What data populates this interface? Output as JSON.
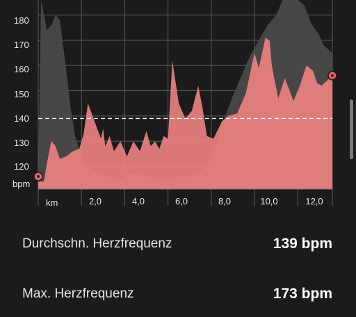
{
  "chart_data": {
    "type": "area",
    "xlabel": "km",
    "ylabel": "bpm",
    "xlim": [
      0,
      13.6
    ],
    "ylim": [
      111,
      186
    ],
    "x_ticks": [
      0,
      2,
      4,
      6,
      8,
      10,
      12,
      13.6
    ],
    "x_tick_labels": [
      "",
      "2,0",
      "4,0",
      "6,0",
      "8,0",
      "10,0",
      "12,0",
      ""
    ],
    "y_ticks": [
      120,
      130,
      140,
      150,
      160,
      170,
      180
    ],
    "y_tick_labels": [
      "120",
      "130",
      "140",
      "150",
      "160",
      "170",
      "180"
    ],
    "average_line": 139,
    "grid": true,
    "colors": {
      "heart_rate": "#f08282",
      "elevation": "#4a4a4a",
      "marker": "#f06464",
      "average": "#ffffff"
    },
    "series": [
      {
        "name": "",
        "kind": "heart_rate",
        "x": [
          0,
          0.26,
          0.4,
          0.6,
          0.8,
          1.0,
          1.3,
          1.6,
          1.9,
          2.1,
          2.3,
          2.6,
          2.9,
          3.0,
          3.1,
          3.3,
          3.5,
          3.8,
          4.1,
          4.4,
          4.7,
          5.0,
          5.2,
          5.4,
          5.6,
          5.8,
          6.0,
          6.2,
          6.5,
          6.8,
          7.1,
          7.4,
          7.6,
          7.8,
          8.1,
          8.5,
          8.8,
          9.2,
          9.6,
          10.0,
          10.2,
          10.5,
          10.7,
          10.8,
          11.1,
          11.4,
          11.8,
          12.1,
          12.4,
          12.7,
          12.9,
          13.1,
          13.6
        ],
        "values": [
          114,
          114,
          121,
          130,
          128,
          123,
          124,
          126,
          127,
          133,
          145,
          138,
          131,
          135,
          128,
          132,
          126,
          130,
          124,
          130,
          126,
          134,
          128,
          130,
          127,
          132,
          131,
          162,
          145,
          139,
          142,
          152,
          143,
          132,
          131,
          138,
          140,
          141,
          149,
          165,
          159,
          171,
          170,
          160,
          147,
          155,
          146,
          152,
          160,
          158,
          153,
          152,
          156
        ]
      },
      {
        "name": "",
        "kind": "elevation",
        "x": [
          0,
          0.13,
          0.4,
          0.6,
          0.8,
          1.0,
          1.3,
          1.5,
          1.7,
          1.9,
          2.2,
          2.7,
          3.1,
          3.5,
          3.8,
          4.2,
          4.5,
          5.0,
          5.5,
          6.0,
          6.5,
          7.0,
          7.5,
          8.0,
          8.3,
          8.6,
          9.0,
          9.4,
          9.8,
          10.2,
          10.6,
          11.0,
          11.3,
          11.6,
          12.0,
          12.3,
          12.6,
          13.0,
          13.2,
          13.6
        ],
        "values": [
          115,
          186,
          174,
          176,
          180,
          178,
          158,
          143,
          132,
          127,
          120,
          118,
          117,
          115,
          115,
          117,
          117,
          116,
          115,
          115,
          116,
          116,
          118,
          123,
          131,
          139,
          148,
          156,
          164,
          170,
          176,
          180,
          186,
          186,
          186,
          184,
          177,
          172,
          168,
          165
        ]
      }
    ],
    "current_marker": {
      "x": 13.6,
      "value": 156
    },
    "start_marker": {
      "x": 0,
      "value": 116
    }
  },
  "stats": [
    {
      "label": "Durchschn. Herzfrequenz",
      "value": "139 bpm"
    },
    {
      "label": "Max. Herzfrequenz",
      "value": "173 bpm"
    }
  ]
}
